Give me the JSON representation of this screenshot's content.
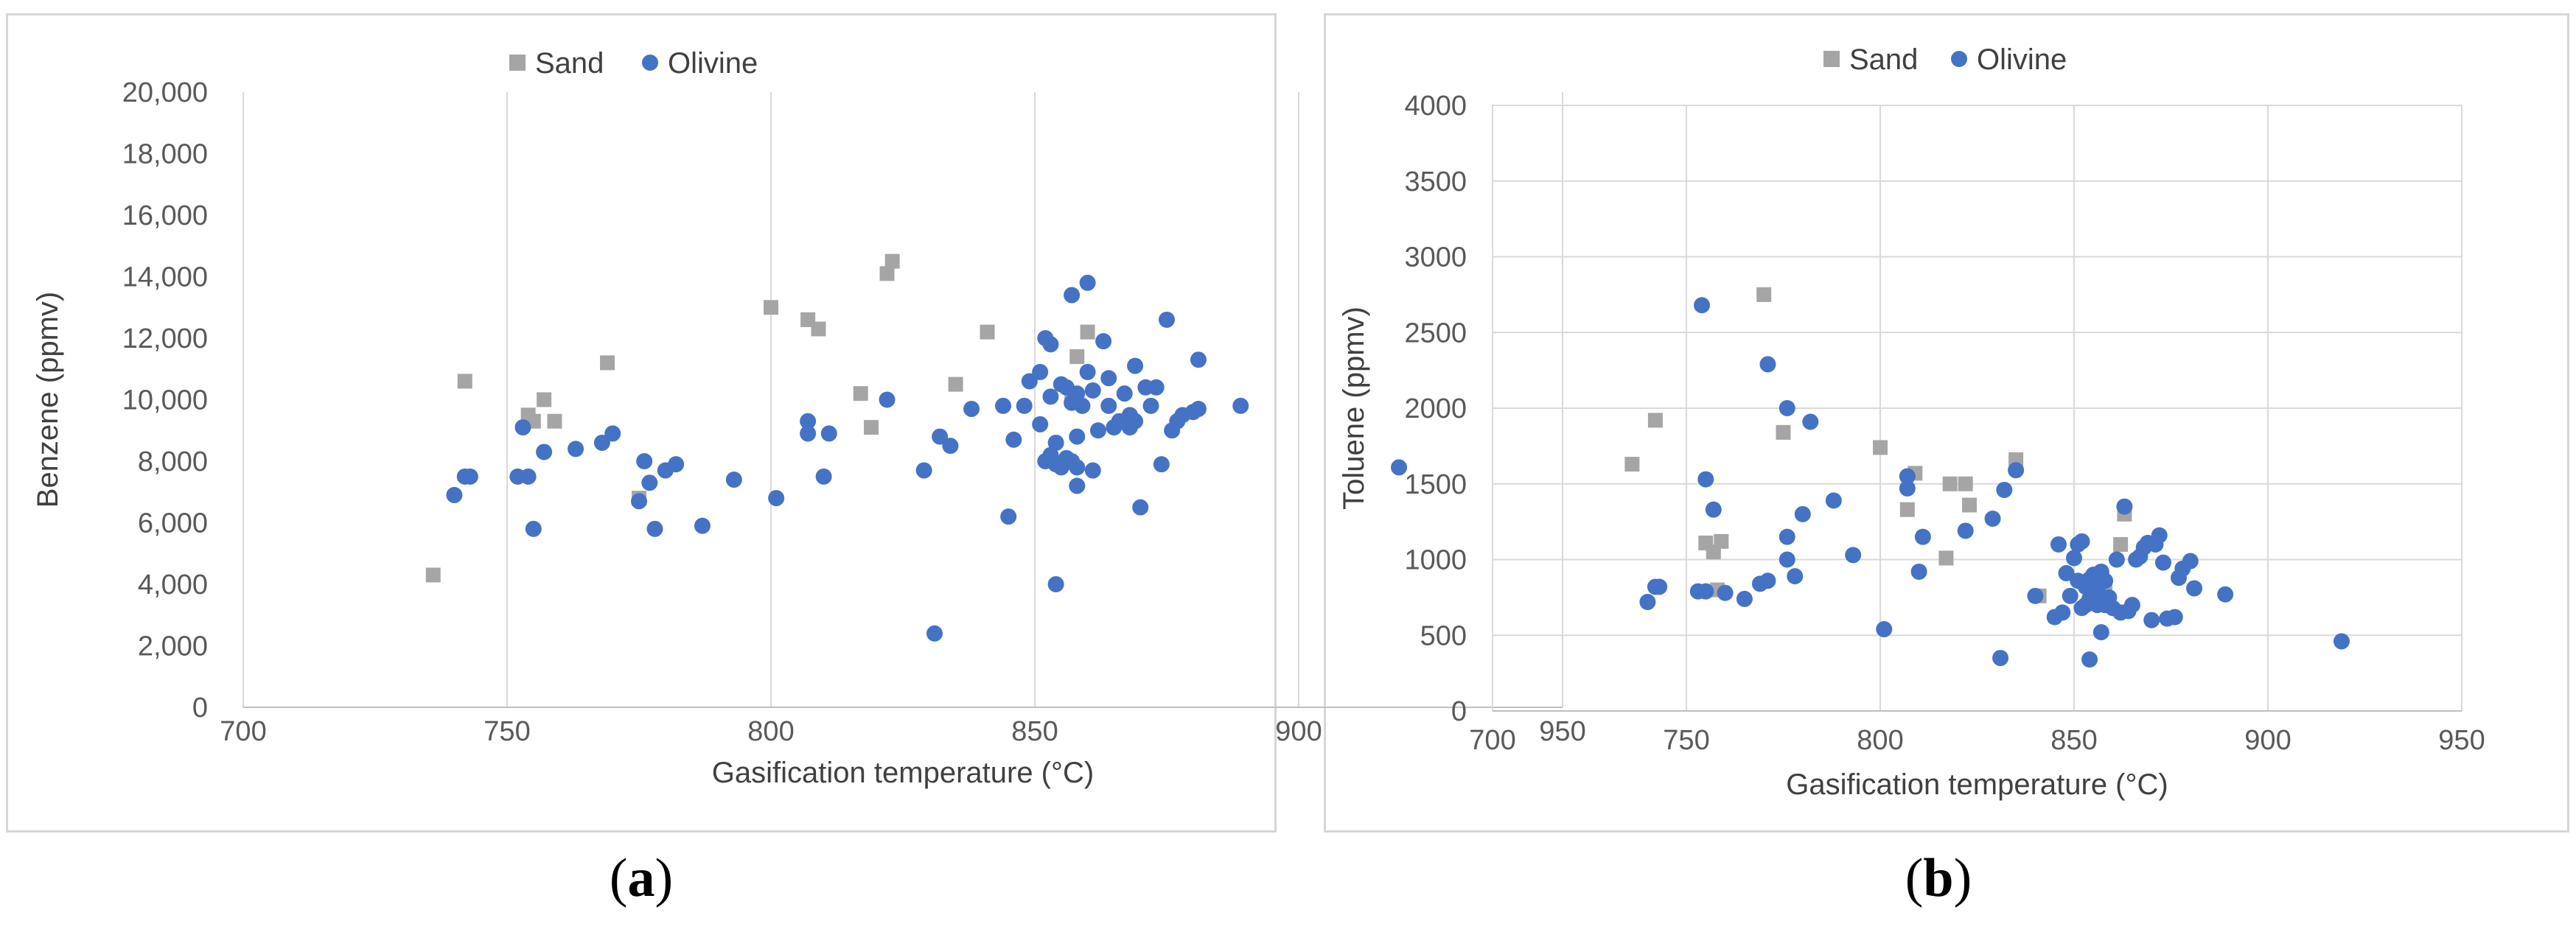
{
  "panels": [
    {
      "label_open": "(",
      "label_letter": "a",
      "label_close": ")"
    },
    {
      "label_open": "(",
      "label_letter": "b",
      "label_close": ")"
    }
  ],
  "colors": {
    "sand": "#a5a5a5",
    "olivine": "#4472c4",
    "grid": "#d9d9d9"
  },
  "chart_data": [
    {
      "type": "scatter",
      "xlabel": "Gasification temperature (°C)",
      "ylabel": "Benzene (ppmv)",
      "xlim": [
        700,
        950
      ],
      "ylim": [
        0,
        20000
      ],
      "xticks": [
        700,
        750,
        800,
        850,
        900,
        950
      ],
      "yticks": [
        0,
        2000,
        4000,
        6000,
        8000,
        10000,
        12000,
        14000,
        16000,
        18000,
        20000
      ],
      "xtick_labels": [
        "700",
        "750",
        "800",
        "850",
        "900",
        "950"
      ],
      "ytick_labels": [
        "0",
        "2,000",
        "4,000",
        "6,000",
        "8,000",
        "10,000",
        "12,000",
        "14,000",
        "16,000",
        "18,000",
        "20,000"
      ],
      "grid": "vertical",
      "legend": "top",
      "series": [
        {
          "name": "Sand",
          "marker": "square",
          "points": [
            [
              736,
              4300
            ],
            [
              742,
              10600
            ],
            [
              754,
              9500
            ],
            [
              755,
              9300
            ],
            [
              757,
              10000
            ],
            [
              759,
              9300
            ],
            [
              769,
              11200
            ],
            [
              775,
              6800
            ],
            [
              800,
              13000
            ],
            [
              807,
              12600
            ],
            [
              809,
              12300
            ],
            [
              817,
              10200
            ],
            [
              819,
              9100
            ],
            [
              822,
              14100
            ],
            [
              823,
              14500
            ],
            [
              835,
              10500
            ],
            [
              841,
              12200
            ],
            [
              857,
              10000
            ],
            [
              858,
              11400
            ],
            [
              860,
              12200
            ]
          ]
        },
        {
          "name": "Olivine",
          "marker": "circle",
          "points": [
            [
              740,
              6900
            ],
            [
              742,
              7500
            ],
            [
              743,
              7500
            ],
            [
              752,
              7500
            ],
            [
              753,
              9100
            ],
            [
              754,
              7500
            ],
            [
              755,
              5800
            ],
            [
              757,
              8300
            ],
            [
              763,
              8400
            ],
            [
              768,
              8600
            ],
            [
              770,
              8900
            ],
            [
              775,
              6700
            ],
            [
              776,
              8000
            ],
            [
              777,
              7300
            ],
            [
              778,
              5800
            ],
            [
              780,
              7700
            ],
            [
              782,
              7900
            ],
            [
              787,
              5900
            ],
            [
              793,
              7400
            ],
            [
              801,
              6800
            ],
            [
              807,
              8900
            ],
            [
              807,
              9300
            ],
            [
              810,
              7500
            ],
            [
              811,
              8900
            ],
            [
              822,
              10000
            ],
            [
              829,
              7700
            ],
            [
              831,
              2400
            ],
            [
              832,
              8800
            ],
            [
              834,
              8500
            ],
            [
              838,
              9700
            ],
            [
              844,
              9800
            ],
            [
              845,
              6200
            ],
            [
              846,
              8700
            ],
            [
              848,
              9800
            ],
            [
              849,
              10600
            ],
            [
              851,
              10900
            ],
            [
              851,
              9200
            ],
            [
              852,
              12000
            ],
            [
              852,
              8000
            ],
            [
              853,
              11800
            ],
            [
              853,
              10100
            ],
            [
              853,
              8200
            ],
            [
              854,
              4000
            ],
            [
              854,
              8600
            ],
            [
              854,
              7900
            ],
            [
              855,
              10500
            ],
            [
              855,
              7800
            ],
            [
              856,
              10400
            ],
            [
              856,
              8100
            ],
            [
              857,
              13400
            ],
            [
              857,
              9900
            ],
            [
              857,
              8000
            ],
            [
              858,
              10200
            ],
            [
              858,
              8800
            ],
            [
              858,
              7800
            ],
            [
              859,
              9800
            ],
            [
              858,
              7200
            ],
            [
              860,
              13800
            ],
            [
              860,
              10900
            ],
            [
              861,
              10300
            ],
            [
              861,
              7700
            ],
            [
              862,
              9000
            ],
            [
              863,
              11900
            ],
            [
              864,
              10700
            ],
            [
              864,
              9800
            ],
            [
              865,
              9100
            ],
            [
              866,
              9300
            ],
            [
              867,
              10200
            ],
            [
              868,
              9500
            ],
            [
              868,
              9100
            ],
            [
              869,
              9300
            ],
            [
              869,
              11100
            ],
            [
              870,
              6500
            ],
            [
              871,
              10400
            ],
            [
              872,
              9800
            ],
            [
              873,
              10400
            ],
            [
              874,
              7900
            ],
            [
              875,
              12600
            ],
            [
              876,
              9000
            ],
            [
              877,
              9300
            ],
            [
              878,
              9500
            ],
            [
              880,
              9600
            ],
            [
              881,
              11300
            ],
            [
              881,
              9700
            ],
            [
              889,
              9800
            ],
            [
              919,
              7800
            ]
          ]
        }
      ]
    },
    {
      "type": "scatter",
      "xlabel": "Gasification temperature (°C)",
      "ylabel": "Toluene (ppmv)",
      "xlim": [
        700,
        950
      ],
      "ylim": [
        0,
        4000
      ],
      "xticks": [
        700,
        750,
        800,
        850,
        900,
        950
      ],
      "yticks": [
        0,
        500,
        1000,
        1500,
        2000,
        2500,
        3000,
        3500,
        4000
      ],
      "xtick_labels": [
        "700",
        "750",
        "800",
        "850",
        "900",
        "950"
      ],
      "ytick_labels": [
        "0",
        "500",
        "1000",
        "1500",
        "2000",
        "2500",
        "3000",
        "3500",
        "4000"
      ],
      "grid": "both",
      "legend": "top",
      "series": [
        {
          "name": "Sand",
          "marker": "square",
          "points": [
            [
              736,
              1630
            ],
            [
              742,
              1920
            ],
            [
              755,
              1110
            ],
            [
              757,
              1050
            ],
            [
              758,
              800
            ],
            [
              759,
              1120
            ],
            [
              770,
              2750
            ],
            [
              775,
              1840
            ],
            [
              800,
              1740
            ],
            [
              807,
              1330
            ],
            [
              809,
              1570
            ],
            [
              818,
              1500
            ],
            [
              817,
              1010
            ],
            [
              822,
              1500
            ],
            [
              823,
              1360
            ],
            [
              835,
              1660
            ],
            [
              841,
              760
            ],
            [
              858,
              820
            ],
            [
              862,
              1100
            ],
            [
              863,
              1300
            ]
          ]
        },
        {
          "name": "Olivine",
          "marker": "circle",
          "points": [
            [
              740,
              720
            ],
            [
              742,
              820
            ],
            [
              743,
              820
            ],
            [
              753,
              790
            ],
            [
              754,
              2680
            ],
            [
              755,
              1530
            ],
            [
              755,
              790
            ],
            [
              757,
              1330
            ],
            [
              760,
              780
            ],
            [
              765,
              740
            ],
            [
              769,
              840
            ],
            [
              771,
              860
            ],
            [
              771,
              2290
            ],
            [
              776,
              2000
            ],
            [
              776,
              1000
            ],
            [
              776,
              1150
            ],
            [
              778,
              890
            ],
            [
              780,
              1300
            ],
            [
              782,
              1910
            ],
            [
              788,
              1390
            ],
            [
              793,
              1030
            ],
            [
              801,
              540
            ],
            [
              807,
              1550
            ],
            [
              807,
              1470
            ],
            [
              810,
              920
            ],
            [
              811,
              1150
            ],
            [
              822,
              1190
            ],
            [
              829,
              1270
            ],
            [
              831,
              350
            ],
            [
              832,
              1460
            ],
            [
              835,
              1590
            ],
            [
              840,
              760
            ],
            [
              845,
              620
            ],
            [
              846,
              1100
            ],
            [
              847,
              650
            ],
            [
              848,
              910
            ],
            [
              849,
              760
            ],
            [
              850,
              1010
            ],
            [
              851,
              1100
            ],
            [
              851,
              860
            ],
            [
              852,
              1120
            ],
            [
              852,
              680
            ],
            [
              853,
              820
            ],
            [
              853,
              700
            ],
            [
              854,
              870
            ],
            [
              854,
              340
            ],
            [
              854,
              740
            ],
            [
              855,
              760
            ],
            [
              855,
              900
            ],
            [
              856,
              800
            ],
            [
              856,
              700
            ],
            [
              857,
              920
            ],
            [
              857,
              520
            ],
            [
              857,
              850
            ],
            [
              858,
              700
            ],
            [
              858,
              860
            ],
            [
              859,
              750
            ],
            [
              860,
              680
            ],
            [
              861,
              1000
            ],
            [
              862,
              650
            ],
            [
              863,
              1350
            ],
            [
              864,
              660
            ],
            [
              865,
              700
            ],
            [
              866,
              1000
            ],
            [
              867,
              1020
            ],
            [
              868,
              1080
            ],
            [
              869,
              1110
            ],
            [
              870,
              600
            ],
            [
              871,
              1100
            ],
            [
              872,
              1160
            ],
            [
              873,
              980
            ],
            [
              874,
              610
            ],
            [
              876,
              620
            ],
            [
              877,
              880
            ],
            [
              878,
              940
            ],
            [
              880,
              990
            ],
            [
              881,
              810
            ],
            [
              889,
              770
            ],
            [
              919,
              460
            ]
          ]
        }
      ]
    }
  ]
}
